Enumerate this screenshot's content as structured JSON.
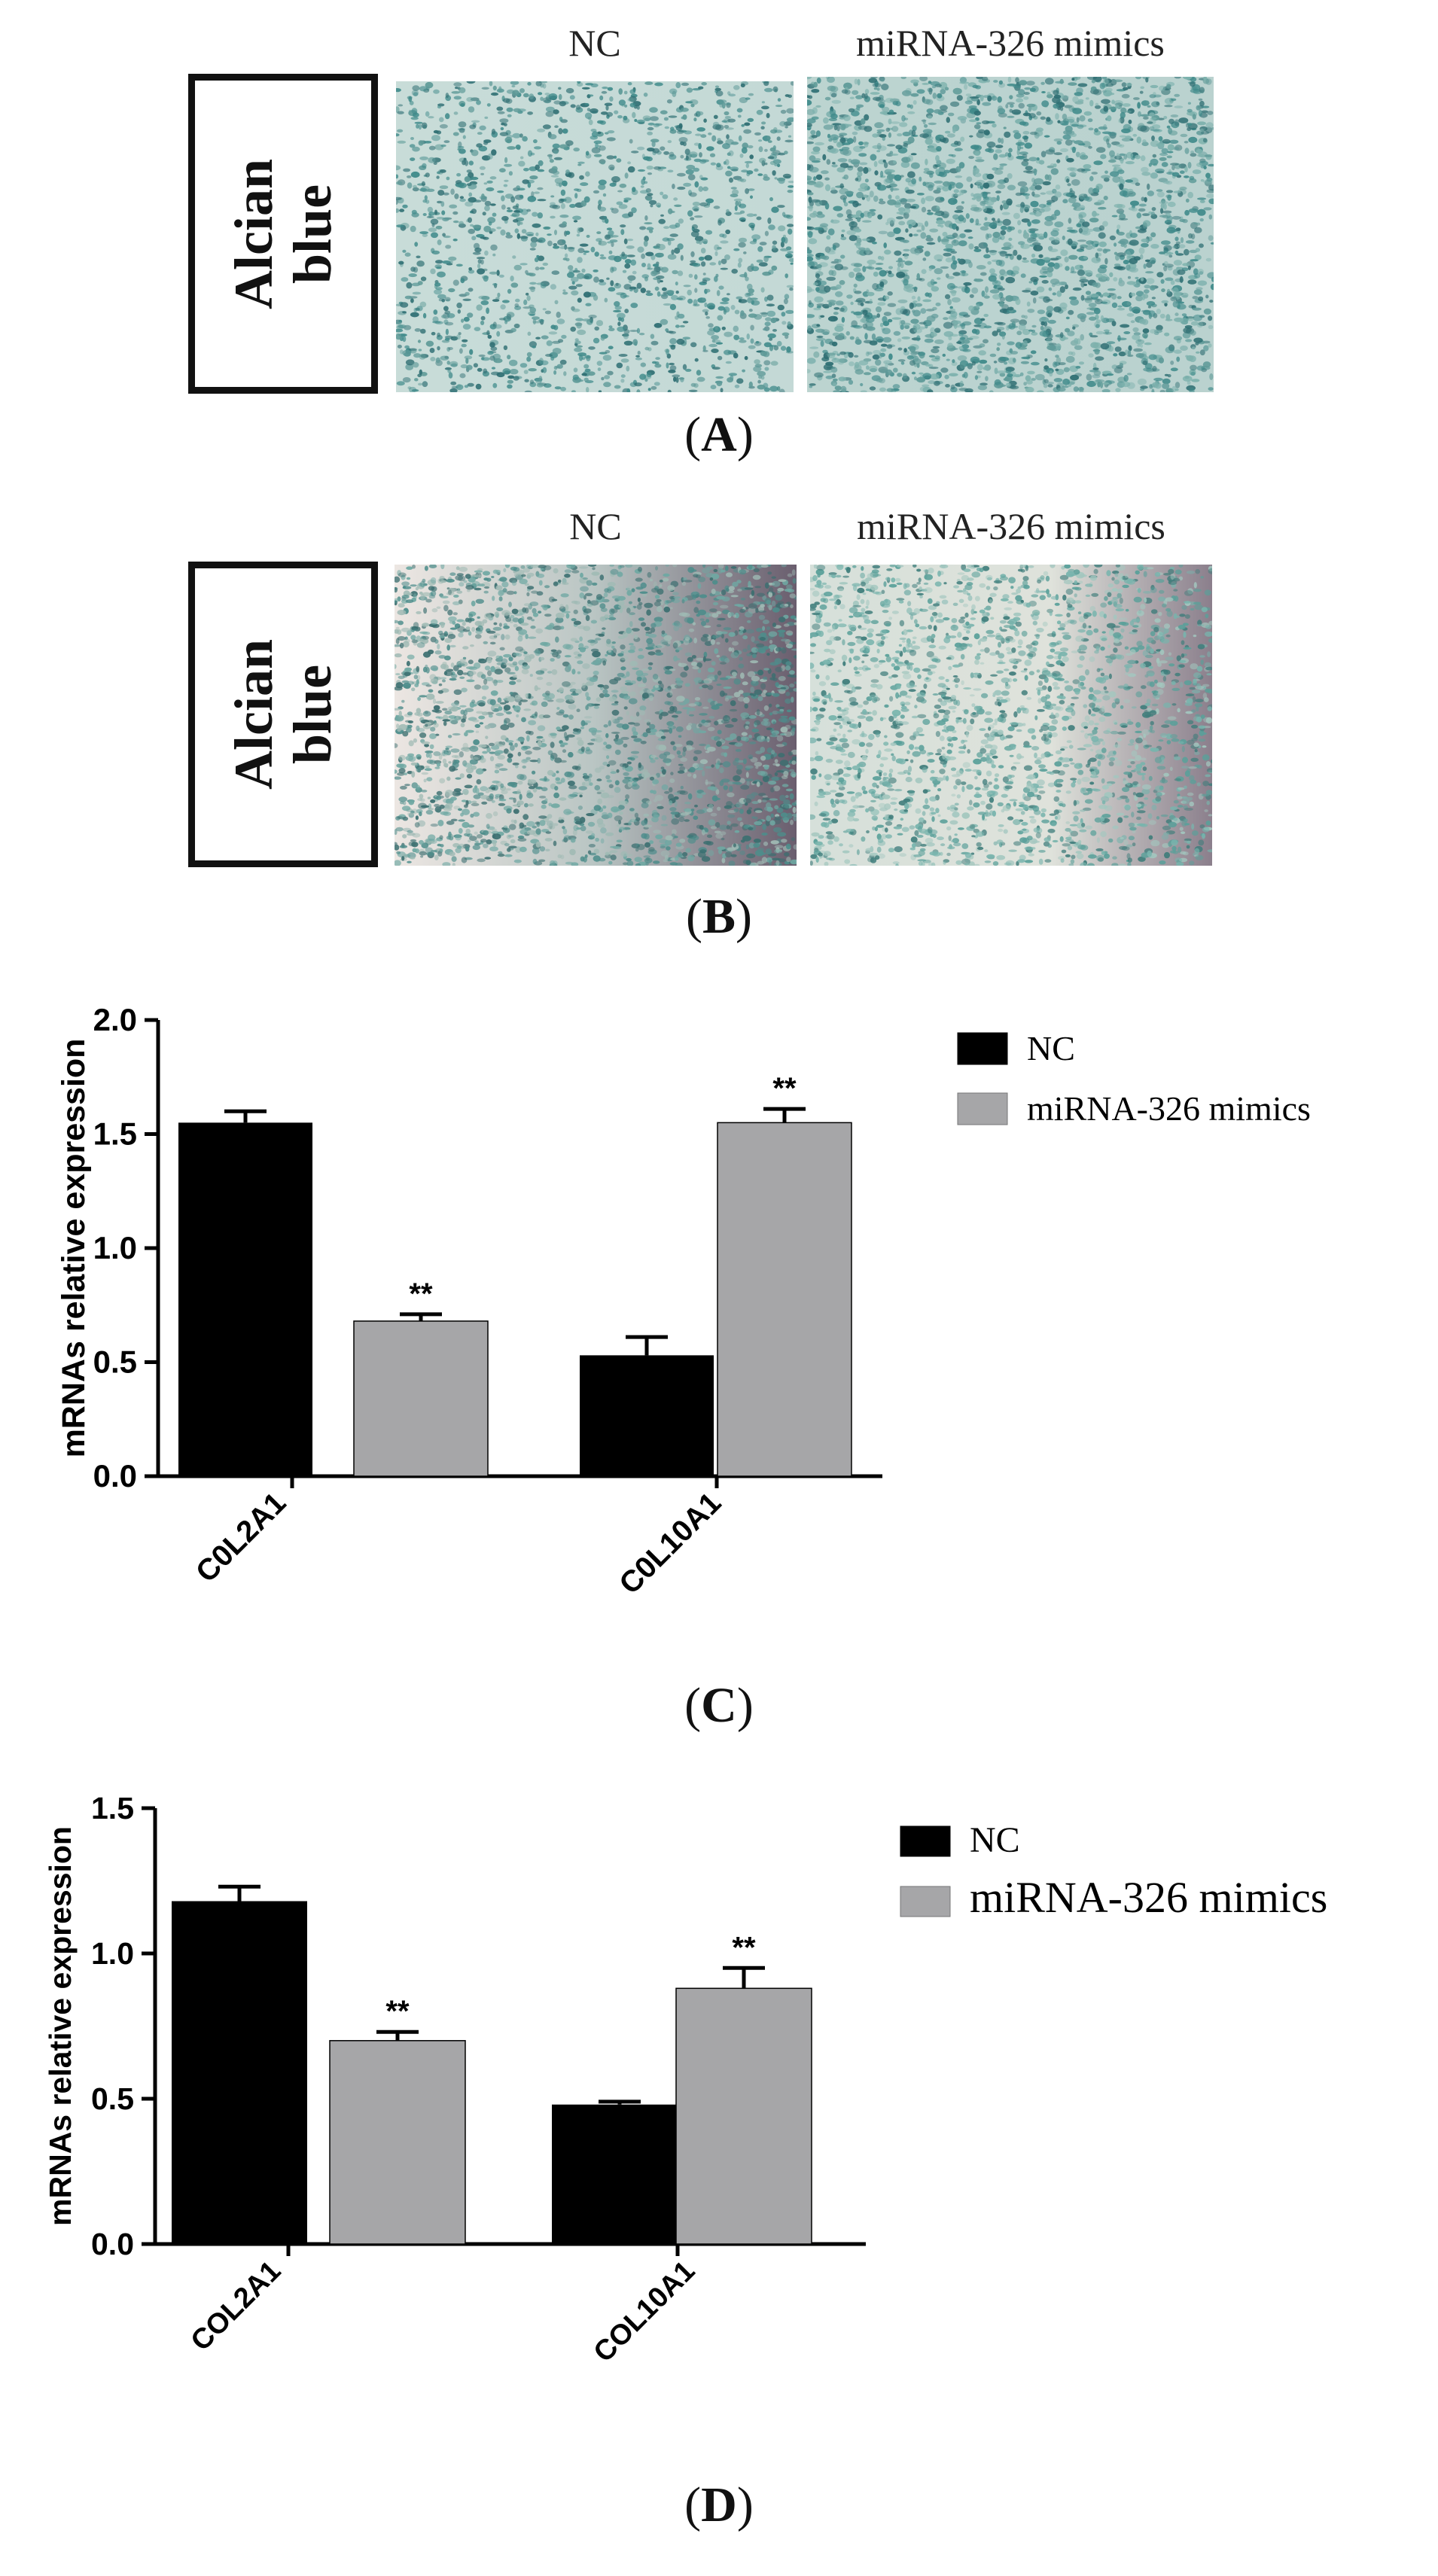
{
  "panels": {
    "A": {
      "label": "A",
      "stain": "Alcian blue",
      "stain_lines": [
        "Alcian",
        "blue"
      ],
      "columns": [
        "NC",
        "miRNA-326 mimics"
      ]
    },
    "B": {
      "label": "B",
      "stain": "Alcian blue",
      "stain_lines": [
        "Alcian",
        "blue"
      ],
      "columns": [
        "NC",
        "miRNA-326 mimics"
      ]
    },
    "C": {
      "label": "C"
    },
    "D": {
      "label": "D"
    }
  },
  "colors": {
    "nc": "#000000",
    "mimics": "#a6a6a8",
    "stain_blue": "#3f8a8a"
  },
  "chart_data": [
    {
      "type": "bar",
      "panel": "C",
      "categories": [
        "C0L2A1",
        "C0L10A1"
      ],
      "series": [
        {
          "name": "NC",
          "values": [
            1.55,
            0.53
          ],
          "errors": [
            0.05,
            0.08
          ],
          "sig": [
            "",
            ""
          ]
        },
        {
          "name": "miRNA-326 mimics",
          "values": [
            0.68,
            1.55
          ],
          "errors": [
            0.03,
            0.06
          ],
          "sig": [
            "**",
            "**"
          ]
        }
      ],
      "title": "",
      "xlabel": "",
      "ylabel": "mRNAs relative expression",
      "ylim": [
        0,
        2.0
      ],
      "yticks": [
        "0.0",
        "0.5",
        "1.0",
        "1.5",
        "2.0"
      ],
      "legend": "right",
      "grid": false
    },
    {
      "type": "bar",
      "panel": "D",
      "categories": [
        "COL2A1",
        "COL10A1"
      ],
      "series": [
        {
          "name": "NC",
          "values": [
            1.18,
            0.48
          ],
          "errors": [
            0.05,
            0.01
          ],
          "sig": [
            "",
            ""
          ]
        },
        {
          "name": "miRNA-326 mimics",
          "values": [
            0.7,
            0.88
          ],
          "errors": [
            0.03,
            0.07
          ],
          "sig": [
            "**",
            "**"
          ]
        }
      ],
      "title": "",
      "xlabel": "",
      "ylabel": "mRNAs relative expression",
      "ylim": [
        0,
        1.5
      ],
      "yticks": [
        "0.0",
        "0.5",
        "1.0",
        "1.5"
      ],
      "legend": "right",
      "grid": false
    }
  ]
}
